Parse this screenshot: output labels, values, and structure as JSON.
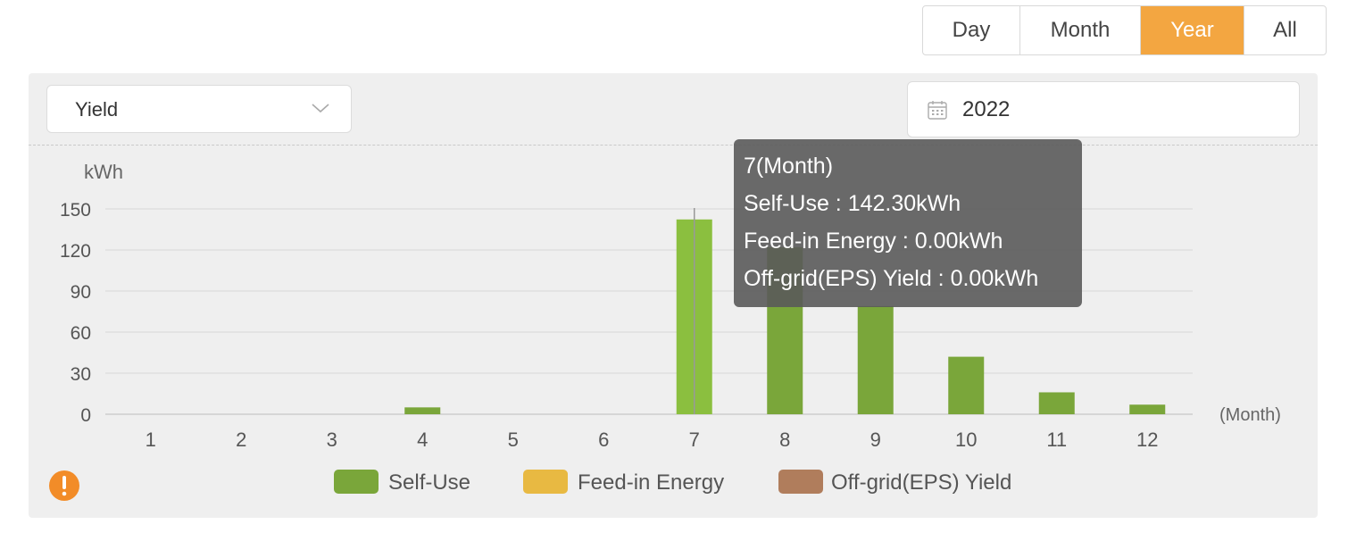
{
  "period_tabs": [
    {
      "label": "Day",
      "active": false
    },
    {
      "label": "Month",
      "active": false
    },
    {
      "label": "Year",
      "active": true
    },
    {
      "label": "All",
      "active": false
    }
  ],
  "metric_select": {
    "value": "Yield",
    "icon": "chevron-down-icon"
  },
  "date_picker": {
    "value": "2022",
    "icon": "calendar-icon"
  },
  "warning_icon": "exclamation-icon",
  "colors": {
    "accent": "#f3a641",
    "self_use": "#7aa63a",
    "self_use_highlight": "#8bbf3f",
    "feed_in": "#e8b942",
    "off_grid": "#b07d5c",
    "warning": "#f28c28"
  },
  "tooltip": {
    "title": "7(Month)",
    "line1": "Self-Use : 142.30kWh",
    "line2": "Feed-in Energy : 0.00kWh",
    "line3": "Off-grid(EPS) Yield : 0.00kWh"
  },
  "chart_data": {
    "type": "bar",
    "ylabel": "kWh",
    "xlabel": "(Month)",
    "ylim": [
      0,
      150
    ],
    "yticks": [
      0,
      30,
      60,
      90,
      120,
      150
    ],
    "categories": [
      "1",
      "2",
      "3",
      "4",
      "5",
      "6",
      "7",
      "8",
      "9",
      "10",
      "11",
      "12"
    ],
    "series": [
      {
        "name": "Self-Use",
        "values": [
          0,
          0,
          0,
          5,
          0,
          0,
          142.3,
          122,
          79,
          42,
          16,
          7
        ]
      },
      {
        "name": "Feed-in Energy",
        "values": [
          0,
          0,
          0,
          0,
          0,
          0,
          0,
          0,
          0,
          0,
          0,
          0
        ]
      },
      {
        "name": "Off-grid(EPS) Yield",
        "values": [
          0,
          0,
          0,
          0,
          0,
          0,
          0,
          0,
          0,
          0,
          0,
          0
        ]
      }
    ],
    "highlighted_category": "7",
    "grid": true,
    "legend_position": "bottom"
  }
}
